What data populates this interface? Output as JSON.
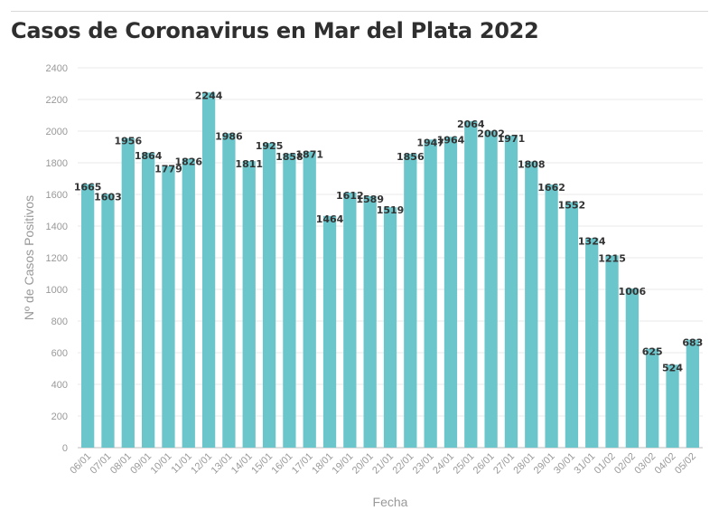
{
  "header": {
    "title": "Casos de Coronavirus en Mar del Plata 2022"
  },
  "colors": {
    "bar": "#6bc6cc",
    "gridline": "#eaeaea",
    "label": "#333333",
    "tick": "#999999"
  },
  "chart_data": {
    "type": "bar",
    "title": "Casos de Coronavirus en Mar del Plata 2022",
    "xlabel": "Fecha",
    "ylabel": "Nº de Casos Positivos",
    "ylim": [
      0,
      2400
    ],
    "yticks": [
      0,
      200,
      400,
      600,
      800,
      1000,
      1200,
      1400,
      1600,
      1800,
      2000,
      2200,
      2400
    ],
    "grid": true,
    "legend": "none",
    "categories": [
      "06/01",
      "07/01",
      "08/01",
      "09/01",
      "10/01",
      "11/01",
      "12/01",
      "13/01",
      "14/01",
      "15/01",
      "16/01",
      "17/01",
      "18/01",
      "19/01",
      "20/01",
      "21/01",
      "22/01",
      "23/01",
      "24/01",
      "25/01",
      "26/01",
      "27/01",
      "28/01",
      "29/01",
      "30/01",
      "31/01",
      "01/02",
      "02/02",
      "03/02",
      "04/02",
      "05/02"
    ],
    "values": [
      1665,
      1603,
      1956,
      1864,
      1779,
      1826,
      2244,
      1986,
      1811,
      1925,
      1858,
      1871,
      1464,
      1612,
      1589,
      1519,
      1856,
      1947,
      1964,
      2064,
      2002,
      1971,
      1808,
      1662,
      1552,
      1324,
      1215,
      1006,
      625,
      524,
      683
    ]
  }
}
